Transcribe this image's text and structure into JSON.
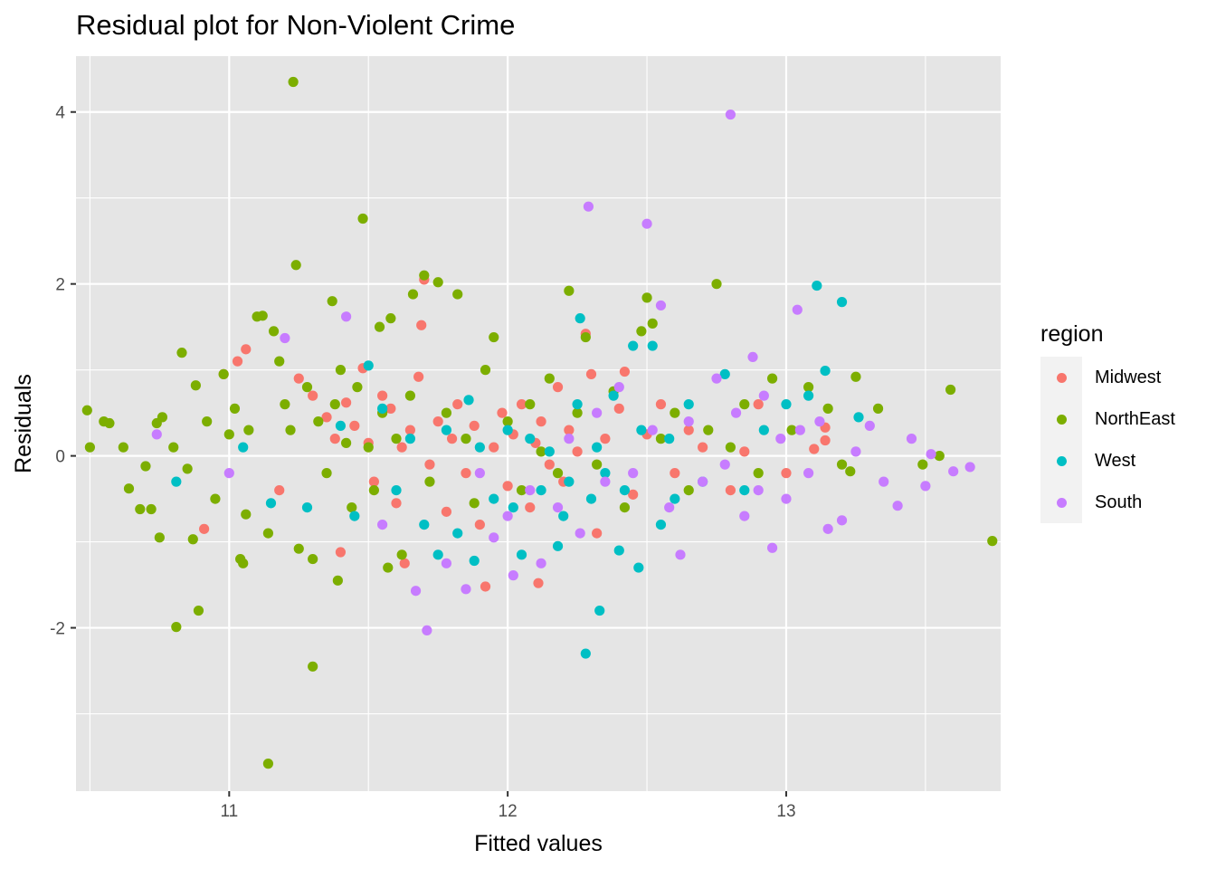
{
  "chart_data": {
    "type": "scatter",
    "title": "Residual plot for Non-Violent Crime",
    "xlabel": "Fitted values",
    "ylabel": "Residuals",
    "xlim": [
      10.45,
      13.77
    ],
    "ylim": [
      -3.9,
      4.65
    ],
    "x_ticks": [
      11,
      12,
      13
    ],
    "x_tick_labels": [
      "11",
      "12",
      "13"
    ],
    "y_ticks": [
      -2,
      0,
      2,
      4
    ],
    "y_tick_labels": [
      "-2",
      "0",
      "2",
      "4"
    ],
    "grid": true,
    "background": "#e5e5e5",
    "legend": {
      "title": "region",
      "position": "right"
    },
    "series": [
      {
        "name": "Midwest",
        "color": "#f8766d",
        "points": [
          [
            10.98,
            0.95
          ],
          [
            11.03,
            1.1
          ],
          [
            11.06,
            1.24
          ],
          [
            11.18,
            -0.4
          ],
          [
            11.25,
            0.9
          ],
          [
            11.3,
            0.7
          ],
          [
            11.35,
            0.45
          ],
          [
            11.38,
            0.2
          ],
          [
            11.4,
            -1.12
          ],
          [
            11.42,
            0.62
          ],
          [
            11.45,
            0.35
          ],
          [
            11.48,
            1.02
          ],
          [
            11.5,
            0.15
          ],
          [
            11.52,
            -0.3
          ],
          [
            11.55,
            0.7
          ],
          [
            11.58,
            0.55
          ],
          [
            11.6,
            -0.55
          ],
          [
            11.62,
            0.1
          ],
          [
            11.63,
            -1.25
          ],
          [
            11.65,
            0.3
          ],
          [
            11.68,
            0.92
          ],
          [
            11.69,
            1.52
          ],
          [
            11.7,
            2.05
          ],
          [
            11.72,
            -0.1
          ],
          [
            11.75,
            0.4
          ],
          [
            11.78,
            -0.65
          ],
          [
            11.8,
            0.2
          ],
          [
            11.82,
            0.6
          ],
          [
            11.85,
            -0.2
          ],
          [
            11.88,
            0.35
          ],
          [
            11.9,
            -0.8
          ],
          [
            11.92,
            -1.52
          ],
          [
            11.95,
            0.1
          ],
          [
            11.98,
            0.5
          ],
          [
            12.0,
            -0.35
          ],
          [
            12.02,
            0.25
          ],
          [
            12.05,
            0.6
          ],
          [
            12.08,
            -0.6
          ],
          [
            12.1,
            0.15
          ],
          [
            12.11,
            -1.48
          ],
          [
            12.12,
            0.4
          ],
          [
            12.15,
            -0.1
          ],
          [
            12.18,
            0.8
          ],
          [
            12.2,
            -0.3
          ],
          [
            12.22,
            0.3
          ],
          [
            12.25,
            0.05
          ],
          [
            12.28,
            1.42
          ],
          [
            12.3,
            0.95
          ],
          [
            12.32,
            -0.9
          ],
          [
            12.35,
            0.2
          ],
          [
            12.4,
            0.55
          ],
          [
            12.42,
            0.98
          ],
          [
            12.45,
            -0.45
          ],
          [
            12.5,
            0.25
          ],
          [
            12.55,
            0.6
          ],
          [
            12.6,
            -0.2
          ],
          [
            12.65,
            0.3
          ],
          [
            12.7,
            0.1
          ],
          [
            12.8,
            -0.4
          ],
          [
            12.85,
            0.05
          ],
          [
            12.9,
            0.6
          ],
          [
            13.0,
            -0.2
          ],
          [
            13.1,
            0.08
          ],
          [
            13.14,
            0.33
          ],
          [
            13.14,
            0.18
          ],
          [
            10.91,
            -0.85
          ]
        ]
      },
      {
        "name": "NorthEast",
        "color": "#7cae00",
        "points": [
          [
            10.49,
            0.53
          ],
          [
            10.5,
            0.1
          ],
          [
            10.55,
            0.4
          ],
          [
            10.57,
            0.38
          ],
          [
            10.62,
            0.1
          ],
          [
            10.64,
            -0.38
          ],
          [
            10.68,
            -0.62
          ],
          [
            10.7,
            -0.12
          ],
          [
            10.72,
            -0.62
          ],
          [
            10.74,
            0.38
          ],
          [
            10.75,
            -0.95
          ],
          [
            10.76,
            0.45
          ],
          [
            10.8,
            0.1
          ],
          [
            10.81,
            -1.99
          ],
          [
            10.83,
            1.2
          ],
          [
            10.85,
            -0.15
          ],
          [
            10.87,
            -0.97
          ],
          [
            10.88,
            0.82
          ],
          [
            10.89,
            -1.8
          ],
          [
            10.92,
            0.4
          ],
          [
            10.95,
            -0.5
          ],
          [
            10.98,
            0.95
          ],
          [
            11.0,
            0.25
          ],
          [
            11.02,
            0.55
          ],
          [
            11.04,
            -1.2
          ],
          [
            11.05,
            -1.25
          ],
          [
            11.06,
            -0.68
          ],
          [
            11.07,
            0.3
          ],
          [
            11.1,
            1.62
          ],
          [
            11.12,
            1.63
          ],
          [
            11.14,
            -0.9
          ],
          [
            11.16,
            1.45
          ],
          [
            11.18,
            1.1
          ],
          [
            11.2,
            0.6
          ],
          [
            11.22,
            0.3
          ],
          [
            11.23,
            4.35
          ],
          [
            11.24,
            2.22
          ],
          [
            11.25,
            -1.08
          ],
          [
            11.28,
            0.8
          ],
          [
            11.3,
            -2.45
          ],
          [
            11.3,
            -1.2
          ],
          [
            11.32,
            0.4
          ],
          [
            11.35,
            -0.2
          ],
          [
            11.37,
            1.8
          ],
          [
            11.38,
            0.6
          ],
          [
            11.39,
            -1.45
          ],
          [
            11.4,
            1.0
          ],
          [
            11.42,
            0.15
          ],
          [
            11.44,
            -0.6
          ],
          [
            11.46,
            0.8
          ],
          [
            11.48,
            2.76
          ],
          [
            11.5,
            0.1
          ],
          [
            11.52,
            -0.4
          ],
          [
            11.54,
            1.5
          ],
          [
            11.55,
            0.5
          ],
          [
            11.57,
            -1.3
          ],
          [
            11.58,
            1.6
          ],
          [
            11.6,
            0.2
          ],
          [
            11.62,
            -1.15
          ],
          [
            11.65,
            0.7
          ],
          [
            11.66,
            1.88
          ],
          [
            11.7,
            2.1
          ],
          [
            11.72,
            -0.3
          ],
          [
            11.75,
            2.02
          ],
          [
            11.78,
            0.5
          ],
          [
            11.82,
            1.88
          ],
          [
            11.85,
            0.2
          ],
          [
            11.88,
            -0.55
          ],
          [
            11.92,
            1.0
          ],
          [
            11.95,
            1.38
          ],
          [
            12.0,
            0.4
          ],
          [
            12.05,
            -0.4
          ],
          [
            12.08,
            0.6
          ],
          [
            12.12,
            0.05
          ],
          [
            12.15,
            0.9
          ],
          [
            12.18,
            -0.2
          ],
          [
            12.22,
            1.92
          ],
          [
            12.25,
            0.5
          ],
          [
            12.28,
            1.38
          ],
          [
            12.32,
            -0.1
          ],
          [
            12.38,
            0.75
          ],
          [
            12.42,
            -0.6
          ],
          [
            12.48,
            1.45
          ],
          [
            12.5,
            1.84
          ],
          [
            12.52,
            1.54
          ],
          [
            12.55,
            0.2
          ],
          [
            12.6,
            0.5
          ],
          [
            12.65,
            -0.4
          ],
          [
            12.72,
            0.3
          ],
          [
            12.75,
            2.0
          ],
          [
            12.8,
            0.1
          ],
          [
            12.85,
            0.6
          ],
          [
            12.9,
            -0.2
          ],
          [
            12.95,
            0.9
          ],
          [
            13.02,
            0.3
          ],
          [
            13.08,
            0.8
          ],
          [
            13.15,
            0.55
          ],
          [
            13.2,
            -0.1
          ],
          [
            13.23,
            -0.18
          ],
          [
            13.25,
            0.92
          ],
          [
            13.33,
            0.55
          ],
          [
            13.49,
            -0.1
          ],
          [
            13.55,
            0.0
          ],
          [
            13.59,
            0.77
          ],
          [
            13.74,
            -0.99
          ],
          [
            11.14,
            -3.58
          ]
        ]
      },
      {
        "name": "West",
        "color": "#00bfc4",
        "points": [
          [
            10.81,
            -0.3
          ],
          [
            11.05,
            0.1
          ],
          [
            11.15,
            -0.55
          ],
          [
            11.28,
            -0.6
          ],
          [
            11.4,
            0.35
          ],
          [
            11.45,
            -0.7
          ],
          [
            11.5,
            1.05
          ],
          [
            11.55,
            0.55
          ],
          [
            11.6,
            -0.4
          ],
          [
            11.65,
            0.2
          ],
          [
            11.7,
            -0.8
          ],
          [
            11.75,
            -1.15
          ],
          [
            11.78,
            0.3
          ],
          [
            11.82,
            -0.9
          ],
          [
            11.86,
            0.65
          ],
          [
            11.88,
            -1.22
          ],
          [
            11.9,
            0.1
          ],
          [
            11.95,
            -0.5
          ],
          [
            12.0,
            0.3
          ],
          [
            12.02,
            -0.6
          ],
          [
            12.05,
            -1.15
          ],
          [
            12.08,
            0.2
          ],
          [
            12.12,
            -0.4
          ],
          [
            12.15,
            0.05
          ],
          [
            12.18,
            -1.05
          ],
          [
            12.2,
            -0.7
          ],
          [
            12.22,
            -0.3
          ],
          [
            12.25,
            0.6
          ],
          [
            12.26,
            1.6
          ],
          [
            12.28,
            -2.3
          ],
          [
            12.3,
            -0.5
          ],
          [
            12.32,
            0.1
          ],
          [
            12.33,
            -1.8
          ],
          [
            12.35,
            -0.2
          ],
          [
            12.38,
            0.7
          ],
          [
            12.4,
            -1.1
          ],
          [
            12.42,
            -0.4
          ],
          [
            12.45,
            1.28
          ],
          [
            12.47,
            -1.3
          ],
          [
            12.48,
            0.3
          ],
          [
            12.52,
            1.28
          ],
          [
            12.55,
            -0.8
          ],
          [
            12.58,
            0.2
          ],
          [
            12.6,
            -0.5
          ],
          [
            12.65,
            0.6
          ],
          [
            12.7,
            -0.3
          ],
          [
            12.78,
            0.95
          ],
          [
            12.85,
            -0.4
          ],
          [
            12.92,
            0.3
          ],
          [
            13.0,
            0.6
          ],
          [
            13.08,
            0.7
          ],
          [
            13.11,
            1.98
          ],
          [
            13.14,
            0.99
          ],
          [
            13.2,
            1.79
          ],
          [
            13.26,
            0.45
          ]
        ]
      },
      {
        "name": "South",
        "color": "#c77cff",
        "points": [
          [
            10.74,
            0.25
          ],
          [
            11.0,
            -0.2
          ],
          [
            11.2,
            1.37
          ],
          [
            11.42,
            1.62
          ],
          [
            11.55,
            -0.8
          ],
          [
            11.67,
            -1.57
          ],
          [
            11.71,
            -2.03
          ],
          [
            11.78,
            -1.25
          ],
          [
            11.85,
            -1.55
          ],
          [
            11.9,
            -0.2
          ],
          [
            11.95,
            -0.95
          ],
          [
            12.0,
            -0.7
          ],
          [
            12.02,
            -1.39
          ],
          [
            12.08,
            -0.4
          ],
          [
            12.12,
            -1.25
          ],
          [
            12.18,
            -0.6
          ],
          [
            12.22,
            0.2
          ],
          [
            12.26,
            -0.9
          ],
          [
            12.29,
            2.9
          ],
          [
            12.32,
            0.5
          ],
          [
            12.35,
            -0.3
          ],
          [
            12.4,
            0.8
          ],
          [
            12.45,
            -0.2
          ],
          [
            12.5,
            2.7
          ],
          [
            12.52,
            0.3
          ],
          [
            12.55,
            1.75
          ],
          [
            12.58,
            -0.6
          ],
          [
            12.62,
            -1.15
          ],
          [
            12.65,
            0.4
          ],
          [
            12.7,
            -0.3
          ],
          [
            12.75,
            0.9
          ],
          [
            12.78,
            -0.1
          ],
          [
            12.8,
            3.97
          ],
          [
            12.82,
            0.5
          ],
          [
            12.85,
            -0.7
          ],
          [
            12.88,
            1.15
          ],
          [
            12.9,
            -0.4
          ],
          [
            12.92,
            0.7
          ],
          [
            12.95,
            -1.07
          ],
          [
            12.98,
            0.2
          ],
          [
            13.0,
            -0.5
          ],
          [
            13.04,
            1.7
          ],
          [
            13.05,
            0.3
          ],
          [
            13.08,
            -0.2
          ],
          [
            13.12,
            0.4
          ],
          [
            13.15,
            -0.85
          ],
          [
            13.2,
            -0.75
          ],
          [
            13.25,
            0.05
          ],
          [
            13.3,
            0.35
          ],
          [
            13.35,
            -0.3
          ],
          [
            13.4,
            -0.58
          ],
          [
            13.45,
            0.2
          ],
          [
            13.5,
            -0.35
          ],
          [
            13.52,
            0.02
          ],
          [
            13.6,
            -0.18
          ],
          [
            13.66,
            -0.13
          ]
        ]
      }
    ]
  }
}
